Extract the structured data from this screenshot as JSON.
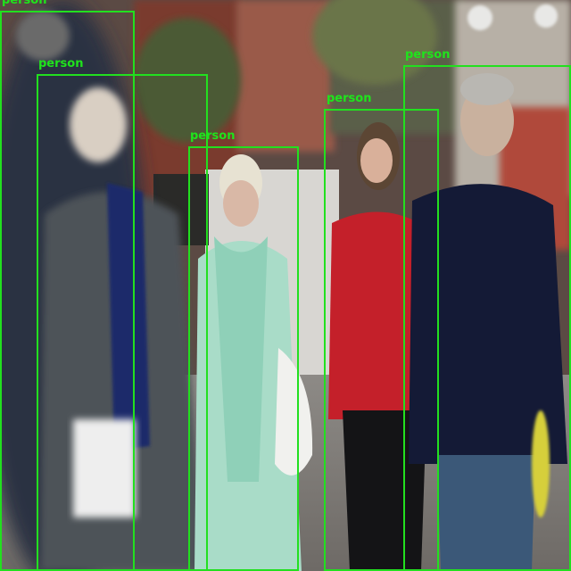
{
  "image": {
    "scene": "street-pedestrians-photo"
  },
  "detections": [
    {
      "label": "person"
    },
    {
      "label": "person"
    },
    {
      "label": "person"
    },
    {
      "label": "person"
    },
    {
      "label": "person"
    }
  ],
  "colors": {
    "box": "#22e01f",
    "label": "#1fe41c"
  }
}
